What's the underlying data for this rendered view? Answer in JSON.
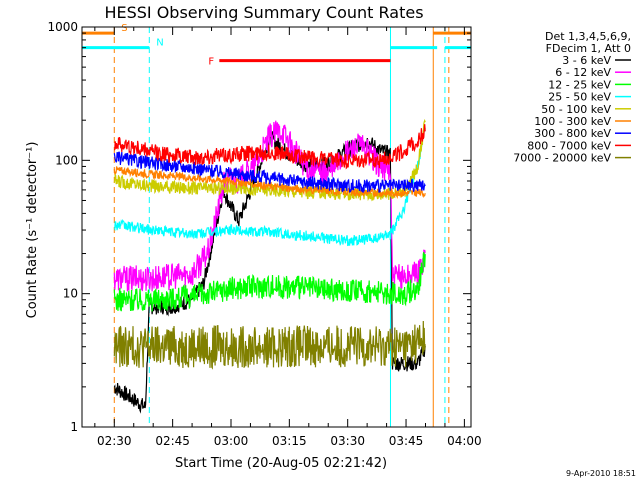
{
  "chart_data": {
    "type": "line",
    "title": "HESSI Observing Summary Count Rates",
    "xlabel": "Start Time (20-Aug-05 02:21:42)",
    "ylabel": "Count Rate (s⁻¹ detector⁻¹)",
    "y_scale": "log",
    "ylim": [
      1,
      1000
    ],
    "xlim": [
      "02:21:42",
      "04:01:42"
    ],
    "x_ticks": [
      "02:30",
      "02:45",
      "03:00",
      "03:15",
      "03:30",
      "03:45",
      "04:00"
    ],
    "y_ticks": [
      "1",
      "10",
      "100",
      "1000"
    ],
    "legend_header": [
      "Det 1,3,4,5,6,9,",
      "FDecim 1, Att 0"
    ],
    "legend_position": "right",
    "footer_date": "9-Apr-2010 18:51",
    "flag_labels": {
      "s": "S",
      "n": "N",
      "f": "F"
    },
    "series": [
      {
        "name": "3 - 6 keV",
        "color": "#000000",
        "points": [
          [
            "02:30",
            2
          ],
          [
            "02:38",
            1.4
          ],
          [
            "02:39",
            8
          ],
          [
            "02:45",
            8
          ],
          [
            "02:50",
            9
          ],
          [
            "02:53",
            12
          ],
          [
            "02:56",
            30
          ],
          [
            "02:58",
            60
          ],
          [
            "03:00",
            45
          ],
          [
            "03:02",
            35
          ],
          [
            "03:06",
            70
          ],
          [
            "03:10",
            150
          ],
          [
            "03:15",
            110
          ],
          [
            "03:20",
            90
          ],
          [
            "03:25",
            95
          ],
          [
            "03:30",
            120
          ],
          [
            "03:35",
            140
          ],
          [
            "03:38",
            120
          ],
          [
            "03:41",
            110
          ],
          [
            "03:41.5",
            3
          ],
          [
            "03:48",
            3
          ],
          [
            "03:50",
            4
          ]
        ]
      },
      {
        "name": "6 - 12 keV",
        "color": "#ff00ff",
        "points": [
          [
            "02:30",
            13
          ],
          [
            "02:40",
            13
          ],
          [
            "02:50",
            14
          ],
          [
            "02:54",
            20
          ],
          [
            "02:56",
            35
          ],
          [
            "02:58",
            65
          ],
          [
            "03:00",
            75
          ],
          [
            "03:02",
            70
          ],
          [
            "03:06",
            90
          ],
          [
            "03:10",
            150
          ],
          [
            "03:13",
            170
          ],
          [
            "03:16",
            120
          ],
          [
            "03:20",
            85
          ],
          [
            "03:25",
            80
          ],
          [
            "03:30",
            115
          ],
          [
            "03:33",
            130
          ],
          [
            "03:36",
            110
          ],
          [
            "03:38",
            90
          ],
          [
            "03:41",
            85
          ],
          [
            "03:41.5",
            13
          ],
          [
            "03:48",
            14
          ],
          [
            "03:50",
            20
          ]
        ]
      },
      {
        "name": "12 - 25 keV",
        "color": "#00ff00",
        "points": [
          [
            "02:30",
            9
          ],
          [
            "02:40",
            9
          ],
          [
            "02:50",
            9.5
          ],
          [
            "03:00",
            11
          ],
          [
            "03:10",
            11.5
          ],
          [
            "03:20",
            11
          ],
          [
            "03:30",
            10.5
          ],
          [
            "03:41",
            10
          ],
          [
            "03:45",
            10
          ],
          [
            "03:48",
            11
          ],
          [
            "03:50",
            20
          ]
        ]
      },
      {
        "name": "25 - 50 keV",
        "color": "#00ffff",
        "points": [
          [
            "02:30",
            33
          ],
          [
            "02:40",
            30
          ],
          [
            "02:50",
            28
          ],
          [
            "03:00",
            30
          ],
          [
            "03:10",
            29
          ],
          [
            "03:20",
            27
          ],
          [
            "03:30",
            25
          ],
          [
            "03:38",
            26
          ],
          [
            "03:41",
            28
          ],
          [
            "03:44",
            40
          ],
          [
            "03:48",
            90
          ],
          [
            "03:50",
            180
          ]
        ]
      },
      {
        "name": "50 - 100 keV",
        "color": "#cccc00",
        "points": [
          [
            "02:30",
            70
          ],
          [
            "02:40",
            64
          ],
          [
            "02:50",
            62
          ],
          [
            "03:00",
            62
          ],
          [
            "03:10",
            60
          ],
          [
            "03:20",
            58
          ],
          [
            "03:30",
            56
          ],
          [
            "03:41",
            56
          ],
          [
            "03:45",
            60
          ],
          [
            "03:48",
            90
          ],
          [
            "03:50",
            200
          ]
        ]
      },
      {
        "name": "100 - 300 keV",
        "color": "#ff8000",
        "points": [
          [
            "02:30",
            85
          ],
          [
            "02:40",
            78
          ],
          [
            "02:50",
            74
          ],
          [
            "03:00",
            70
          ],
          [
            "03:10",
            64
          ],
          [
            "03:20",
            60
          ],
          [
            "03:30",
            58
          ],
          [
            "03:41",
            57
          ],
          [
            "03:45",
            57
          ],
          [
            "03:50",
            57
          ]
        ]
      },
      {
        "name": "300 - 800 keV",
        "color": "#0000ff",
        "points": [
          [
            "02:30",
            105
          ],
          [
            "02:40",
            95
          ],
          [
            "02:50",
            88
          ],
          [
            "03:00",
            80
          ],
          [
            "03:10",
            74
          ],
          [
            "03:20",
            68
          ],
          [
            "03:30",
            65
          ],
          [
            "03:41",
            64
          ],
          [
            "03:45",
            65
          ],
          [
            "03:50",
            65
          ]
        ]
      },
      {
        "name": "800 - 7000 keV",
        "color": "#ff0000",
        "points": [
          [
            "02:30",
            135
          ],
          [
            "02:40",
            115
          ],
          [
            "02:50",
            105
          ],
          [
            "03:00",
            110
          ],
          [
            "03:10",
            115
          ],
          [
            "03:20",
            105
          ],
          [
            "03:30",
            98
          ],
          [
            "03:38",
            100
          ],
          [
            "03:44",
            115
          ],
          [
            "03:48",
            140
          ],
          [
            "03:50",
            170
          ]
        ]
      },
      {
        "name": "7000 - 20000 keV",
        "color": "#808000",
        "points": [
          [
            "02:30",
            4
          ],
          [
            "02:40",
            4
          ],
          [
            "02:50",
            4
          ],
          [
            "03:00",
            4
          ],
          [
            "03:10",
            4
          ],
          [
            "03:20",
            4
          ],
          [
            "03:30",
            4
          ],
          [
            "03:41",
            4
          ],
          [
            "03:45",
            4
          ],
          [
            "03:50",
            4.5
          ]
        ]
      }
    ],
    "flags": [
      {
        "label": "S",
        "color": "#ff8000",
        "level": 900,
        "segments": [
          [
            "02:21:42",
            "02:30"
          ],
          [
            "03:52",
            "04:01:42"
          ]
        ]
      },
      {
        "label": "N",
        "color": "#00ffff",
        "level": 700,
        "segments": [
          [
            "02:21:42",
            "02:39"
          ],
          [
            "03:41",
            "03:53"
          ],
          [
            "03:55",
            "04:01:42"
          ]
        ]
      },
      {
        "label": "F",
        "color": "#ff0000",
        "level": 560,
        "segments": [
          [
            "02:57",
            "03:41"
          ]
        ]
      }
    ],
    "vertical_markers": [
      {
        "time": "02:30",
        "color": "#ff8000",
        "style": "dashed"
      },
      {
        "time": "02:39",
        "color": "#00ffff",
        "style": "dashed"
      },
      {
        "time": "03:41",
        "color": "#00ffff",
        "style": "solid"
      },
      {
        "time": "03:52",
        "color": "#ff8000",
        "style": "solid"
      },
      {
        "time": "03:55",
        "color": "#00ffff",
        "style": "dashed"
      },
      {
        "time": "03:56",
        "color": "#ff8000",
        "style": "dashed"
      }
    ]
  }
}
